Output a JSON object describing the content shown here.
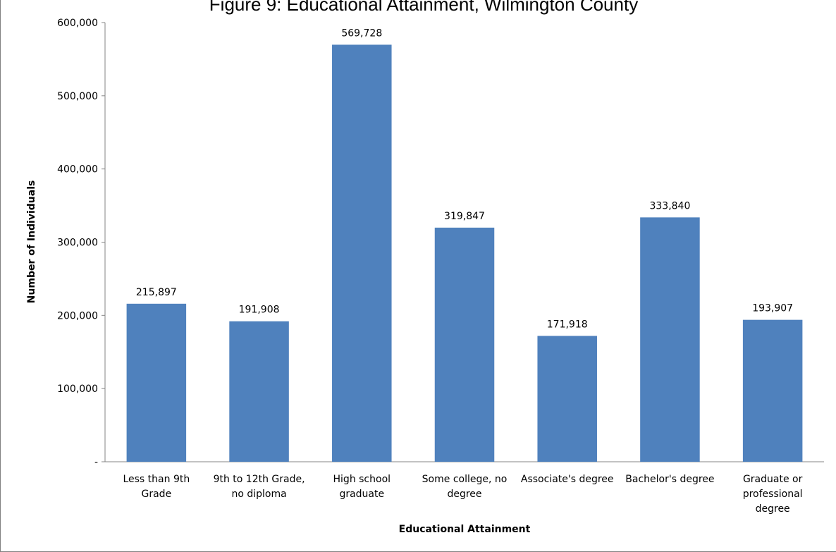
{
  "chart_data": {
    "type": "bar",
    "title": "Figure 9: Educational Attainment, Wilmington County",
    "xlabel": "Educational Attainment",
    "ylabel": "Number of Individuals",
    "ylim": [
      0,
      600000
    ],
    "yticks": [
      0,
      100000,
      200000,
      300000,
      400000,
      500000,
      600000
    ],
    "ytick_labels": [
      "-",
      "100,000",
      "200,000",
      "300,000",
      "400,000",
      "500,000",
      "600,000"
    ],
    "categories": [
      [
        "Less than 9th",
        "Grade"
      ],
      [
        "9th to 12th Grade,",
        "no diploma"
      ],
      [
        "High school",
        "graduate"
      ],
      [
        "Some college, no",
        "degree"
      ],
      [
        "Associate's degree"
      ],
      [
        "Bachelor's degree"
      ],
      [
        "Graduate or",
        "professional",
        "degree"
      ]
    ],
    "values": [
      215897,
      191908,
      569728,
      319847,
      171918,
      333840,
      193907
    ],
    "data_labels": [
      "215,897",
      "191,908",
      "569,728",
      "319,847",
      "171,918",
      "333,840",
      "193,907"
    ],
    "bar_color": "#4F81BD",
    "grid": false,
    "legend": "none"
  }
}
